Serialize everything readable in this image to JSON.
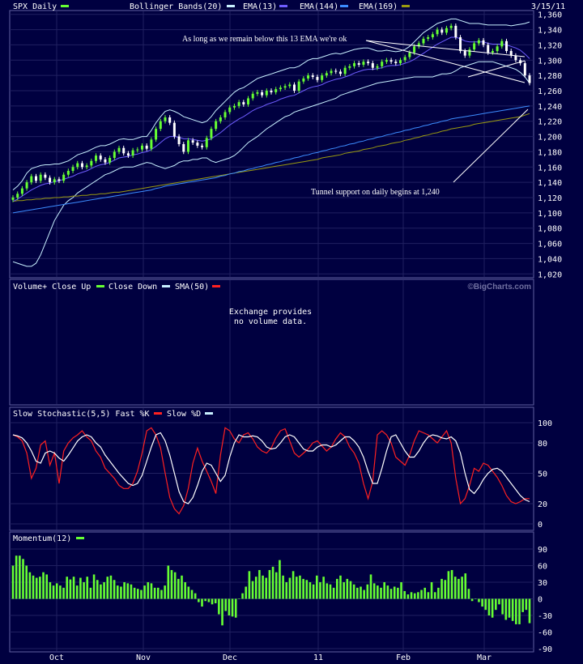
{
  "chart_data": [
    {
      "type": "line",
      "title": "SPX Daily",
      "date": "3/15/11",
      "legend": [
        {
          "label": "SPX Daily",
          "color": "#66ff33"
        },
        {
          "label": "Bollinger Bands(20)",
          "color": "#c8f0ff"
        },
        {
          "label": "EMA(13)",
          "color": "#6e5cff"
        },
        {
          "label": "EMA(144)",
          "color": "#3c8cff"
        },
        {
          "label": "EMA(169)",
          "color": "#9a9a10"
        }
      ],
      "yticks": [
        1360,
        1340,
        1320,
        1300,
        1280,
        1260,
        1240,
        1220,
        1200,
        1180,
        1160,
        1140,
        1120,
        1100,
        1080,
        1060,
        1040,
        1020
      ],
      "ylim": [
        1015,
        1365
      ],
      "xticks": [
        "Oct",
        "Nov",
        "Dec",
        "11",
        "Feb",
        "Mar"
      ],
      "price": [
        1120,
        1125,
        1132,
        1140,
        1148,
        1142,
        1150,
        1146,
        1140,
        1144,
        1142,
        1150,
        1155,
        1160,
        1165,
        1160,
        1162,
        1168,
        1175,
        1170,
        1166,
        1172,
        1180,
        1185,
        1178,
        1175,
        1182,
        1183,
        1188,
        1184,
        1196,
        1210,
        1220,
        1225,
        1218,
        1200,
        1190,
        1180,
        1195,
        1192,
        1188,
        1186,
        1198,
        1210,
        1220,
        1225,
        1232,
        1238,
        1240,
        1245,
        1242,
        1250,
        1256,
        1258,
        1254,
        1260,
        1258,
        1262,
        1264,
        1266,
        1268,
        1260,
        1272,
        1276,
        1280,
        1278,
        1274,
        1280,
        1283,
        1286,
        1285,
        1282,
        1290,
        1292,
        1296,
        1294,
        1298,
        1296,
        1290,
        1292,
        1298,
        1300,
        1298,
        1296,
        1300,
        1304,
        1310,
        1318,
        1322,
        1328,
        1330,
        1334,
        1340,
        1336,
        1342,
        1345,
        1330,
        1312,
        1306,
        1314,
        1322,
        1326,
        1320,
        1310,
        1312,
        1318,
        1325,
        1312,
        1306,
        1300,
        1296,
        1280,
        1270
      ],
      "ema13": [
        1115,
        1118,
        1122,
        1126,
        1130,
        1133,
        1136,
        1138,
        1139,
        1141,
        1142,
        1144,
        1146,
        1148,
        1151,
        1153,
        1155,
        1158,
        1161,
        1163,
        1164,
        1166,
        1169,
        1172,
        1173,
        1174,
        1176,
        1177,
        1179,
        1180,
        1183,
        1187,
        1192,
        1197,
        1200,
        1200,
        1199,
        1197,
        1197,
        1196,
        1195,
        1194,
        1195,
        1197,
        1201,
        1205,
        1210,
        1215,
        1219,
        1223,
        1226,
        1230,
        1234,
        1237,
        1239,
        1242,
        1244,
        1246,
        1249,
        1251,
        1253,
        1254,
        1257,
        1260,
        1263,
        1265,
        1266,
        1268,
        1271,
        1273,
        1275,
        1276,
        1278,
        1280,
        1283,
        1285,
        1287,
        1288,
        1288,
        1289,
        1290,
        1292,
        1293,
        1293,
        1294,
        1296,
        1298,
        1301,
        1305,
        1309,
        1313,
        1317,
        1321,
        1324,
        1327,
        1330,
        1330,
        1328,
        1325,
        1324,
        1324,
        1324,
        1324,
        1322,
        1321,
        1321,
        1321,
        1320,
        1318,
        1316,
        1313,
        1308,
        1302
      ],
      "ema144": [
        1100,
        1101,
        1102,
        1103,
        1104,
        1105,
        1106,
        1107,
        1108,
        1109,
        1110,
        1111,
        1112,
        1113,
        1114,
        1115,
        1116,
        1117,
        1118,
        1119,
        1120,
        1121,
        1122,
        1123,
        1124,
        1125,
        1126,
        1127,
        1128,
        1129,
        1130,
        1132,
        1133,
        1135,
        1136,
        1137,
        1138,
        1139,
        1140,
        1141,
        1142,
        1143,
        1144,
        1145,
        1146,
        1148,
        1149,
        1151,
        1152,
        1154,
        1155,
        1157,
        1158,
        1160,
        1161,
        1163,
        1164,
        1166,
        1167,
        1169,
        1170,
        1172,
        1173,
        1175,
        1176,
        1178,
        1179,
        1181,
        1182,
        1184,
        1185,
        1187,
        1188,
        1190,
        1191,
        1193,
        1194,
        1196,
        1197,
        1199,
        1200,
        1202,
        1203,
        1205,
        1206,
        1208,
        1209,
        1211,
        1212,
        1214,
        1215,
        1217,
        1218,
        1220,
        1221,
        1223,
        1224,
        1225,
        1226,
        1227,
        1228,
        1229,
        1230,
        1231,
        1232,
        1233,
        1234,
        1235,
        1236,
        1237,
        1238,
        1239,
        1240
      ],
      "ema169": [
        1115,
        1116,
        1116,
        1117,
        1117,
        1118,
        1118,
        1119,
        1119,
        1120,
        1120,
        1121,
        1121,
        1122,
        1122,
        1123,
        1123,
        1124,
        1124,
        1125,
        1125,
        1126,
        1127,
        1127,
        1128,
        1129,
        1130,
        1131,
        1132,
        1133,
        1134,
        1135,
        1136,
        1137,
        1138,
        1139,
        1140,
        1141,
        1142,
        1143,
        1144,
        1145,
        1146,
        1147,
        1148,
        1149,
        1150,
        1151,
        1152,
        1153,
        1154,
        1155,
        1156,
        1157,
        1158,
        1159,
        1160,
        1161,
        1162,
        1163,
        1164,
        1165,
        1166,
        1167,
        1168,
        1169,
        1170,
        1172,
        1173,
        1174,
        1175,
        1176,
        1178,
        1179,
        1180,
        1181,
        1183,
        1184,
        1185,
        1187,
        1188,
        1189,
        1191,
        1192,
        1193,
        1195,
        1196,
        1198,
        1199,
        1201,
        1202,
        1204,
        1205,
        1207,
        1208,
        1210,
        1211,
        1212,
        1213,
        1214,
        1216,
        1217,
        1218,
        1219,
        1220,
        1221,
        1222,
        1223,
        1224,
        1225,
        1226,
        1228,
        1230
      ],
      "bb_upper": [
        1130,
        1135,
        1142,
        1152,
        1158,
        1160,
        1162,
        1163,
        1163,
        1164,
        1164,
        1166,
        1168,
        1172,
        1176,
        1178,
        1180,
        1183,
        1186,
        1188,
        1188,
        1190,
        1193,
        1196,
        1197,
        1196,
        1196,
        1198,
        1200,
        1200,
        1208,
        1218,
        1226,
        1233,
        1235,
        1233,
        1230,
        1226,
        1224,
        1222,
        1220,
        1218,
        1220,
        1226,
        1234,
        1240,
        1246,
        1252,
        1258,
        1262,
        1264,
        1268,
        1272,
        1276,
        1278,
        1280,
        1282,
        1284,
        1286,
        1288,
        1290,
        1290,
        1292,
        1296,
        1300,
        1302,
        1302,
        1304,
        1306,
        1308,
        1309,
        1308,
        1310,
        1312,
        1314,
        1315,
        1316,
        1316,
        1314,
        1312,
        1312,
        1313,
        1312,
        1311,
        1312,
        1314,
        1318,
        1324,
        1330,
        1336,
        1340,
        1344,
        1348,
        1350,
        1352,
        1354,
        1354,
        1352,
        1350,
        1348,
        1348,
        1348,
        1347,
        1346,
        1346,
        1346,
        1346,
        1346,
        1345,
        1346,
        1347,
        1348,
        1350
      ],
      "bb_lower": [
        1036,
        1034,
        1032,
        1030,
        1030,
        1034,
        1045,
        1060,
        1075,
        1090,
        1100,
        1110,
        1116,
        1120,
        1126,
        1130,
        1134,
        1138,
        1142,
        1146,
        1150,
        1152,
        1155,
        1158,
        1160,
        1160,
        1160,
        1162,
        1164,
        1166,
        1165,
        1162,
        1160,
        1158,
        1160,
        1162,
        1166,
        1168,
        1168,
        1170,
        1170,
        1172,
        1172,
        1168,
        1166,
        1168,
        1170,
        1172,
        1175,
        1180,
        1186,
        1192,
        1196,
        1200,
        1205,
        1210,
        1214,
        1218,
        1222,
        1226,
        1228,
        1232,
        1234,
        1236,
        1238,
        1240,
        1242,
        1244,
        1246,
        1248,
        1250,
        1254,
        1256,
        1258,
        1260,
        1262,
        1264,
        1266,
        1268,
        1270,
        1271,
        1272,
        1273,
        1274,
        1275,
        1276,
        1277,
        1278,
        1278,
        1278,
        1278,
        1278,
        1280,
        1282,
        1282,
        1283,
        1286,
        1290,
        1292,
        1294,
        1296,
        1298,
        1298,
        1298,
        1298,
        1296,
        1294,
        1292,
        1290,
        1288,
        1284,
        1278,
        1270
      ],
      "annotations": [
        {
          "text": "As long as we remain below this 13 EMA we're ok"
        },
        {
          "text": "Tunnel support on daily begins at 1,240"
        }
      ]
    },
    {
      "type": "bar",
      "title": "Volume+ Close Up",
      "legend": [
        {
          "label": "Volume+ Close Up",
          "color": "#66ff33"
        },
        {
          "label": "Close Down",
          "color": "#c8f0ff"
        },
        {
          "label": "SMA(50)",
          "color": "#ff2020"
        }
      ],
      "watermark": "©BigCharts.com",
      "message": [
        "Exchange provides",
        "no volume data."
      ]
    },
    {
      "type": "line",
      "title": "Slow Stochastic(5,5)",
      "legend": [
        {
          "label": "Slow Stochastic(5,5) Fast %K",
          "color": "#ff2020"
        },
        {
          "label": "Slow %D",
          "color": "#c8f0ff"
        }
      ],
      "yticks": [
        100,
        80,
        50,
        20,
        0
      ],
      "ylim": [
        0,
        100
      ],
      "fastK": [
        88,
        86,
        82,
        70,
        45,
        55,
        78,
        82,
        58,
        70,
        40,
        72,
        80,
        85,
        88,
        92,
        86,
        82,
        72,
        66,
        55,
        50,
        45,
        38,
        35,
        35,
        40,
        52,
        70,
        92,
        95,
        88,
        75,
        50,
        26,
        15,
        10,
        18,
        35,
        60,
        75,
        62,
        52,
        42,
        30,
        68,
        95,
        92,
        84,
        80,
        88,
        90,
        84,
        76,
        72,
        70,
        75,
        85,
        92,
        94,
        82,
        70,
        66,
        70,
        74,
        80,
        82,
        77,
        72,
        76,
        84,
        90,
        86,
        76,
        70,
        60,
        40,
        25,
        42,
        88,
        92,
        88,
        80,
        66,
        62,
        58,
        68,
        82,
        92,
        90,
        88,
        84,
        80,
        86,
        92,
        80,
        45,
        20,
        25,
        38,
        55,
        52,
        60,
        58,
        52,
        46,
        38,
        28,
        22,
        20,
        22,
        25,
        25
      ],
      "slowD": [
        88,
        87,
        85,
        80,
        72,
        62,
        60,
        70,
        72,
        70,
        65,
        62,
        68,
        75,
        82,
        86,
        88,
        86,
        80,
        76,
        68,
        62,
        56,
        50,
        45,
        40,
        38,
        40,
        48,
        62,
        76,
        88,
        90,
        82,
        68,
        50,
        32,
        22,
        20,
        26,
        38,
        52,
        60,
        58,
        50,
        42,
        48,
        66,
        80,
        88,
        86,
        86,
        87,
        86,
        82,
        76,
        74,
        75,
        80,
        86,
        88,
        86,
        80,
        74,
        72,
        72,
        76,
        78,
        78,
        76,
        78,
        82,
        86,
        86,
        82,
        76,
        66,
        52,
        40,
        40,
        55,
        72,
        86,
        88,
        80,
        72,
        66,
        66,
        72,
        80,
        86,
        88,
        87,
        85,
        84,
        86,
        82,
        70,
        50,
        34,
        30,
        36,
        44,
        50,
        54,
        55,
        52,
        46,
        40,
        34,
        28,
        24,
        22
      ],
      "xticks": [
        "Oct",
        "Nov",
        "Dec",
        "11",
        "Feb",
        "Mar"
      ]
    },
    {
      "type": "bar",
      "title": "Momentum(12)",
      "legend": [
        {
          "label": "Momentum(12)",
          "color": "#66ff33"
        }
      ],
      "yticks": [
        90,
        60,
        30,
        0,
        -30,
        -60,
        -90
      ],
      "ylim": [
        -90,
        90
      ],
      "xticks": [
        "Oct",
        "Nov",
        "Dec",
        "11",
        "Feb",
        "Mar"
      ],
      "values": [
        60,
        78,
        78,
        72,
        60,
        48,
        42,
        38,
        40,
        48,
        44,
        30,
        24,
        28,
        24,
        20,
        40,
        35,
        40,
        24,
        38,
        30,
        40,
        20,
        44,
        34,
        26,
        30,
        40,
        42,
        34,
        24,
        22,
        30,
        28,
        26,
        20,
        18,
        16,
        24,
        30,
        28,
        20,
        20,
        16,
        24,
        60,
        52,
        48,
        36,
        42,
        30,
        22,
        16,
        10,
        -6,
        -14,
        -4,
        -6,
        -10,
        -8,
        -28,
        -48,
        -22,
        -30,
        -32,
        -34,
        0,
        10,
        22,
        50,
        32,
        40,
        52,
        42,
        38,
        52,
        58,
        48,
        70,
        42,
        30,
        38,
        50,
        40,
        42,
        36,
        34,
        30,
        26,
        42,
        30,
        40,
        28,
        26,
        20,
        36,
        42,
        30,
        36,
        32,
        26,
        20,
        22,
        16,
        26,
        44,
        28,
        24,
        20,
        30,
        24,
        18,
        22,
        20,
        30,
        14,
        8,
        12,
        10,
        12,
        16,
        20,
        12,
        30,
        12,
        20,
        36,
        34,
        50,
        52,
        40,
        36,
        40,
        46,
        18,
        -4,
        0,
        -6,
        -14,
        -20,
        -30,
        -34,
        -20,
        -10,
        -28,
        -38,
        -34,
        -40,
        -46,
        -46,
        -24,
        -20,
        -44
      ]
    }
  ]
}
